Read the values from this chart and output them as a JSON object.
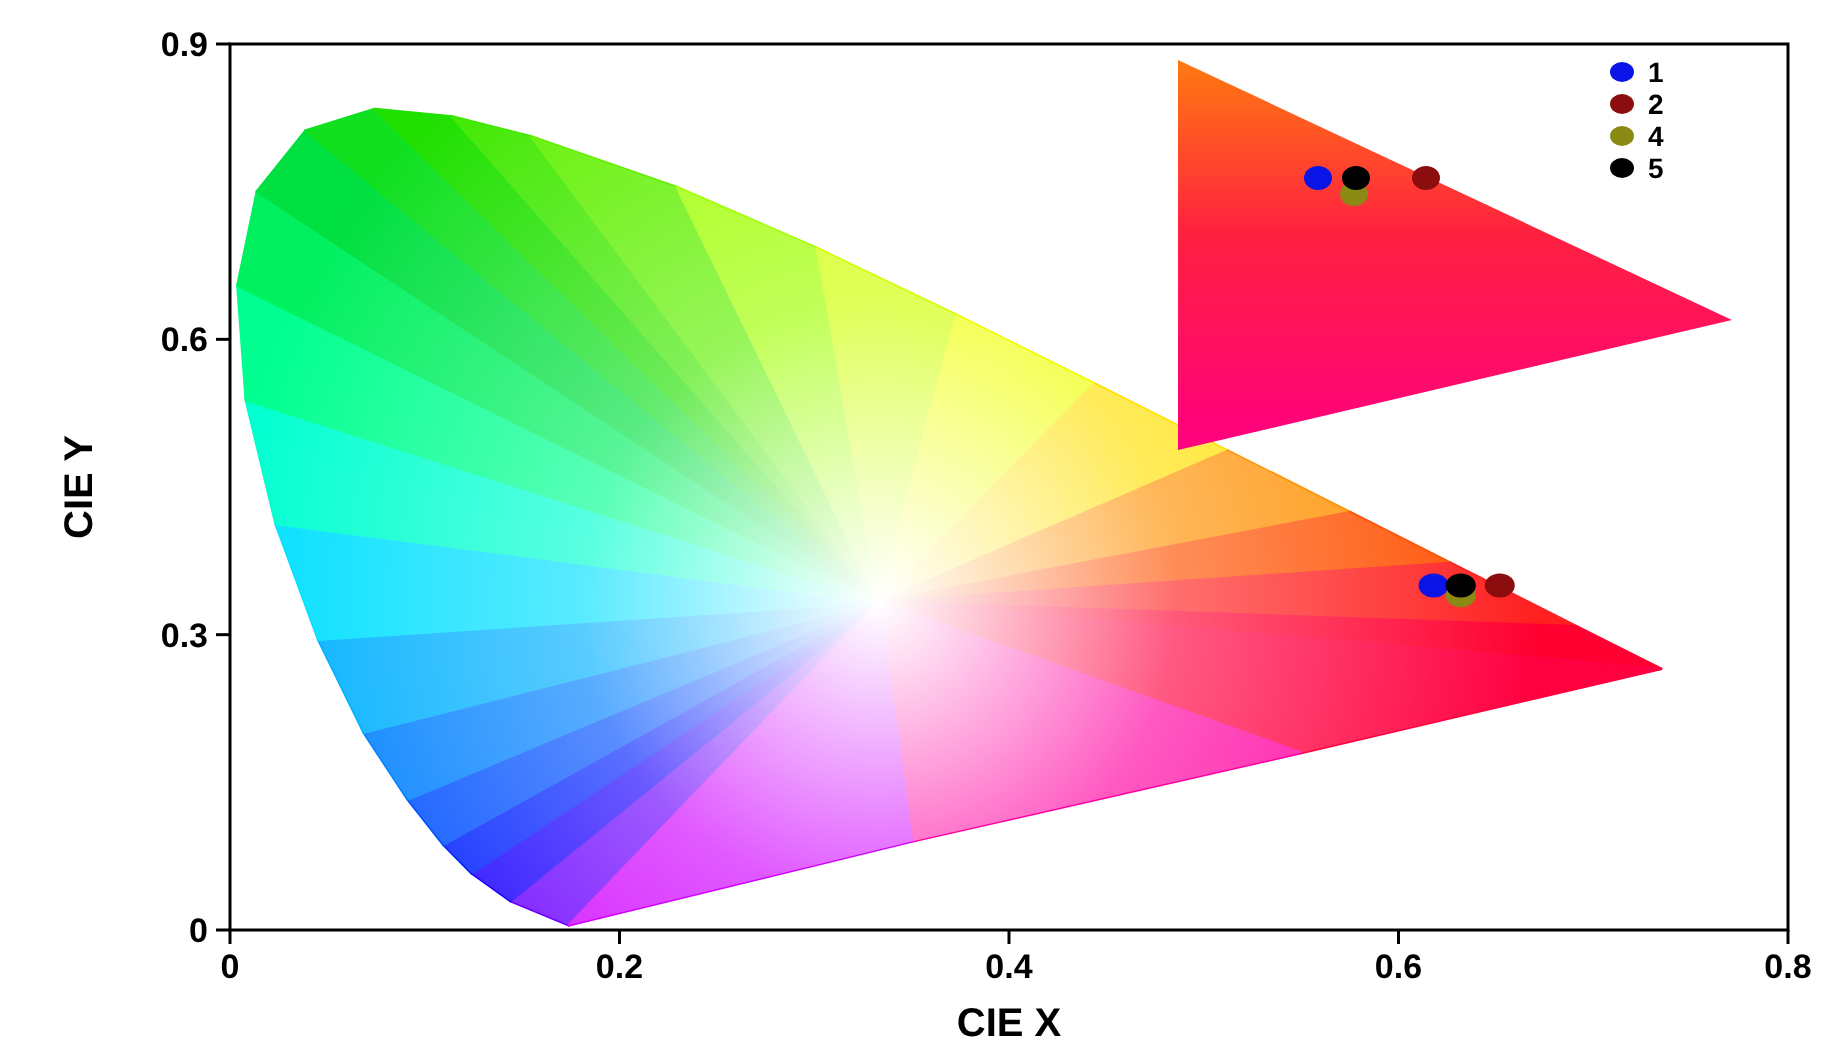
{
  "chart_data": {
    "type": "scatter",
    "xlabel": "CIE X",
    "ylabel": "CIE Y",
    "xlim": [
      0,
      0.8
    ],
    "xticks": [
      0,
      0.2,
      0.4,
      0.6,
      0.8
    ],
    "ylim": [
      0,
      0.9
    ],
    "yticks": [
      0,
      0.3,
      0.6,
      0.9
    ],
    "grid": false,
    "legend": "top right",
    "marker": "circle",
    "series": [
      {
        "name": "1",
        "color": "#0a14e6",
        "x": [
          0.618
        ],
        "values": [
          0.35
        ]
      },
      {
        "name": "2",
        "color": "#8b0d0d",
        "x": [
          0.652
        ],
        "values": [
          0.35
        ]
      },
      {
        "name": "4",
        "color": "#8a8a14",
        "x": [
          0.632
        ],
        "values": [
          0.34
        ]
      },
      {
        "name": "5",
        "color": "#000000",
        "x": [
          0.632
        ],
        "values": [
          0.35
        ]
      }
    ]
  }
}
